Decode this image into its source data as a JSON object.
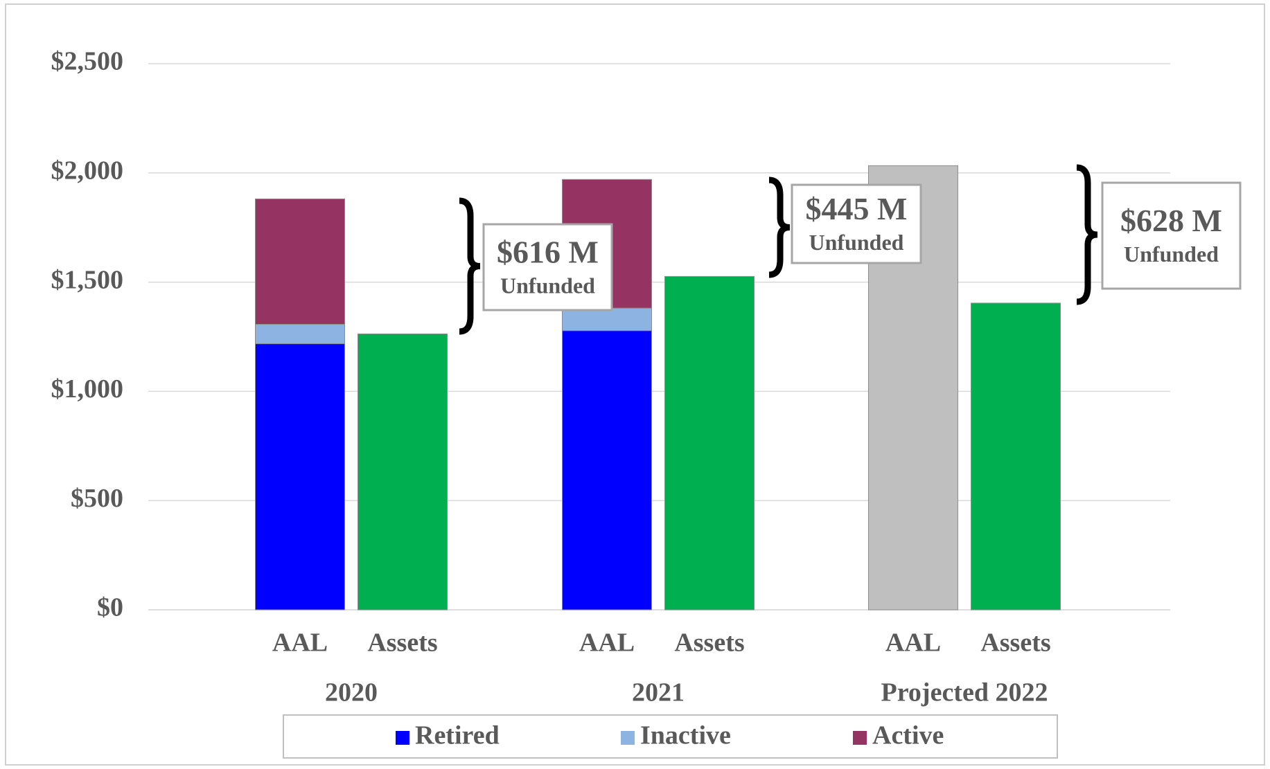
{
  "chart_data": {
    "type": "bar",
    "stacked": true,
    "categories": [
      "AAL",
      "Assets",
      "AAL",
      "Assets",
      "AAL",
      "Assets"
    ],
    "groups": [
      "2020",
      "2021",
      "Projected 2022"
    ],
    "series": [
      {
        "name": "Retired",
        "color": "#0000ff",
        "values": [
          1218,
          null,
          1278,
          null,
          null,
          null
        ]
      },
      {
        "name": "Inactive",
        "color": "#8db3e2",
        "values": [
          89,
          null,
          103,
          null,
          null,
          null
        ]
      },
      {
        "name": "Active",
        "color": "#953462",
        "values": [
          574,
          null,
          589,
          null,
          null,
          null
        ]
      },
      {
        "color": "#00b050",
        "values": [
          null,
          1263,
          null,
          1526,
          null,
          1404
        ]
      },
      {
        "color": "#bfbfbf",
        "values": [
          null,
          null,
          null,
          null,
          2033,
          null
        ]
      }
    ],
    "ylim": [
      0,
      2500
    ],
    "yticks": [
      {
        "value": 0,
        "label": "$0"
      },
      {
        "value": 500,
        "label": "$500"
      },
      {
        "value": 1000,
        "label": "$1,000"
      },
      {
        "value": 1500,
        "label": "$1,500"
      },
      {
        "value": 2000,
        "label": "$2,000"
      },
      {
        "value": 2500,
        "label": "$2,500"
      }
    ],
    "grid": true,
    "legend": "bottom",
    "annotations": [
      {
        "text": "$616 M",
        "subtext": "Unfunded"
      },
      {
        "text": "$445 M",
        "subtext": "Unfunded"
      },
      {
        "text": "$628 M",
        "subtext": "Unfunded"
      }
    ]
  }
}
